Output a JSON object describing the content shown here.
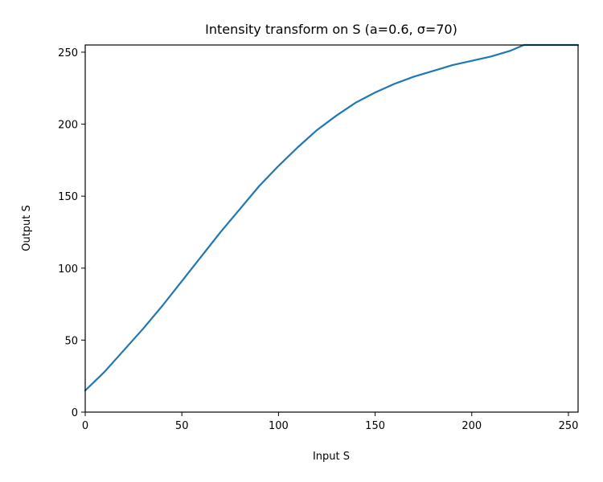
{
  "chart_data": {
    "type": "line",
    "title": "Intensity transform on S (a=0.6, σ=70)",
    "xlabel": "Input S",
    "ylabel": "Output S",
    "xlim": [
      0,
      255
    ],
    "ylim": [
      0,
      255
    ],
    "x_ticks": [
      0,
      50,
      100,
      150,
      200,
      250
    ],
    "y_ticks": [
      0,
      50,
      100,
      150,
      200,
      250
    ],
    "grid": false,
    "color": "#1f77b4",
    "series": [
      {
        "x": [
          0,
          10,
          20,
          30,
          40,
          50,
          60,
          70,
          80,
          90,
          100,
          110,
          120,
          130,
          140,
          150,
          160,
          170,
          180,
          190,
          200,
          210,
          220,
          227,
          235,
          245,
          255
        ],
        "y": [
          15,
          28,
          43,
          58,
          74,
          91,
          108,
          125,
          141,
          157,
          171,
          184,
          196,
          206,
          215,
          222,
          228,
          233,
          237,
          241,
          244,
          247,
          251,
          255,
          255,
          255,
          255
        ]
      }
    ]
  }
}
